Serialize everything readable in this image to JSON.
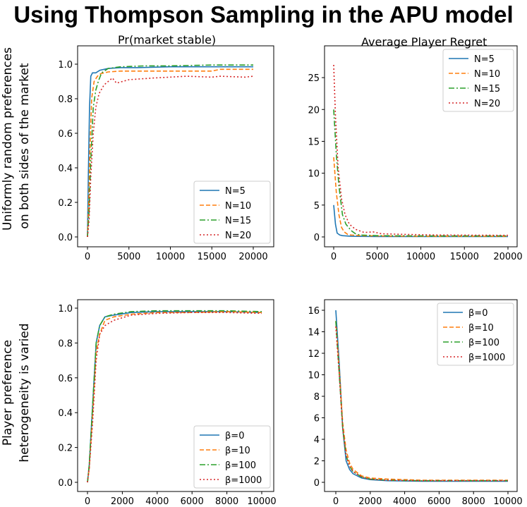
{
  "title": "Using Thompson Sampling in the APU model",
  "column_titles": [
    "Pr(market stable)",
    "Average Player Regret"
  ],
  "row_labels": [
    [
      "Uniformly random preferences",
      "on both sides of the market"
    ],
    [
      "Player preference",
      "heterogeneity is varied"
    ]
  ],
  "colors": [
    "#1f77b4",
    "#ff7f0e",
    "#2ca02c",
    "#d62728"
  ],
  "chart_data": [
    {
      "type": "line",
      "title": "Pr(market stable)",
      "xlim": [
        0,
        20000
      ],
      "ylim": [
        0,
        1
      ],
      "xticks": [
        0,
        5000,
        10000,
        15000,
        20000
      ],
      "yticks": [
        0.0,
        0.2,
        0.4,
        0.6,
        0.8,
        1.0
      ],
      "xtick_labels": [
        "0",
        "5000",
        "10000",
        "15000",
        "20000"
      ],
      "ytick_labels": [
        "0.0",
        "0.2",
        "0.4",
        "0.6",
        "0.8",
        "1.0"
      ],
      "legend": "lower-right",
      "series": [
        {
          "name": "N=5",
          "x": [
            0,
            100,
            250,
            400,
            600,
            1000,
            1500,
            2500,
            4000,
            6000,
            10000,
            15000,
            20000
          ],
          "y": [
            0,
            0.35,
            0.75,
            0.93,
            0.95,
            0.95,
            0.965,
            0.975,
            0.98,
            0.98,
            0.985,
            0.985,
            0.985
          ]
        },
        {
          "name": "N=10",
          "x": [
            0,
            150,
            300,
            500,
            800,
            1200,
            1600,
            2500,
            4000,
            7000,
            10000,
            15000,
            16000,
            20000
          ],
          "y": [
            0,
            0.2,
            0.5,
            0.8,
            0.9,
            0.93,
            0.945,
            0.955,
            0.96,
            0.96,
            0.96,
            0.96,
            0.97,
            0.97
          ]
        },
        {
          "name": "N=15",
          "x": [
            0,
            200,
            400,
            700,
            1000,
            1300,
            1700,
            2500,
            4000,
            7000,
            10000,
            15000,
            20000
          ],
          "y": [
            0,
            0.15,
            0.45,
            0.75,
            0.85,
            0.9,
            0.95,
            0.975,
            0.985,
            0.99,
            0.99,
            0.995,
            0.995
          ]
        },
        {
          "name": "N=20",
          "x": [
            0,
            200,
            400,
            700,
            1000,
            1400,
            2000,
            3000,
            3500,
            5000,
            8000,
            12000,
            15000,
            16000,
            19000,
            20000
          ],
          "y": [
            0,
            0.1,
            0.35,
            0.6,
            0.75,
            0.83,
            0.88,
            0.92,
            0.89,
            0.91,
            0.92,
            0.93,
            0.925,
            0.93,
            0.925,
            0.93
          ]
        }
      ]
    },
    {
      "type": "line",
      "title": "Average Player Regret",
      "xlim": [
        0,
        20000
      ],
      "ylim": [
        0,
        27
      ],
      "xticks": [
        0,
        5000,
        10000,
        15000,
        20000
      ],
      "yticks": [
        0,
        5,
        10,
        15,
        20,
        25
      ],
      "xtick_labels": [
        "0",
        "5000",
        "10000",
        "15000",
        "20000"
      ],
      "ytick_labels": [
        "0",
        "5",
        "10",
        "15",
        "20",
        "25"
      ],
      "legend": "upper-right",
      "series": [
        {
          "name": "N=5",
          "x": [
            0,
            200,
            400,
            700,
            1000,
            2000,
            5000,
            10000,
            20000
          ],
          "y": [
            5.0,
            2.0,
            0.6,
            0.3,
            0.2,
            0.1,
            0.05,
            0.05,
            0.05
          ]
        },
        {
          "name": "N=10",
          "x": [
            0,
            300,
            600,
            900,
            1200,
            1600,
            2000,
            3000,
            5000,
            10000,
            20000
          ],
          "y": [
            12.5,
            7.0,
            3.5,
            1.5,
            0.8,
            0.4,
            0.3,
            0.2,
            0.15,
            0.1,
            0.1
          ]
        },
        {
          "name": "N=15",
          "x": [
            0,
            300,
            600,
            1000,
            1400,
            2000,
            2500,
            3000,
            5000,
            10000,
            20000
          ],
          "y": [
            20.0,
            13.0,
            8.0,
            3.5,
            2.0,
            1.0,
            0.5,
            0.3,
            0.2,
            0.15,
            0.15
          ]
        },
        {
          "name": "N=20",
          "x": [
            0,
            200,
            500,
            900,
            1300,
            1800,
            2500,
            3500,
            4500,
            5500,
            8000,
            12000,
            20000
          ],
          "y": [
            27.0,
            19.0,
            11.0,
            6.0,
            3.5,
            2.0,
            1.2,
            0.7,
            0.8,
            0.5,
            0.4,
            0.3,
            0.25
          ]
        }
      ]
    },
    {
      "type": "line",
      "title": "",
      "xlim": [
        0,
        10000
      ],
      "ylim": [
        0,
        1
      ],
      "xticks": [
        0,
        2000,
        4000,
        6000,
        8000,
        10000
      ],
      "yticks": [
        0.0,
        0.2,
        0.4,
        0.6,
        0.8,
        1.0
      ],
      "xtick_labels": [
        "0",
        "2000",
        "4000",
        "6000",
        "8000",
        "10000"
      ],
      "ytick_labels": [
        "0.0",
        "0.2",
        "0.4",
        "0.6",
        "0.8",
        "1.0"
      ],
      "legend": "lower-right",
      "series": [
        {
          "name": "β=0",
          "x": [
            0,
            100,
            300,
            500,
            700,
            1000,
            1500,
            2500,
            4000,
            6000,
            8000,
            10000
          ],
          "y": [
            0,
            0.1,
            0.45,
            0.8,
            0.9,
            0.95,
            0.96,
            0.975,
            0.98,
            0.98,
            0.98,
            0.975
          ]
        },
        {
          "name": "β=10",
          "x": [
            0,
            100,
            300,
            500,
            700,
            1000,
            1500,
            2500,
            4000,
            6000,
            8000,
            10000
          ],
          "y": [
            0,
            0.08,
            0.4,
            0.75,
            0.85,
            0.93,
            0.95,
            0.965,
            0.975,
            0.975,
            0.98,
            0.975
          ]
        },
        {
          "name": "β=100",
          "x": [
            0,
            100,
            300,
            500,
            700,
            1000,
            1500,
            2500,
            4000,
            6000,
            8000,
            10000
          ],
          "y": [
            0,
            0.1,
            0.45,
            0.8,
            0.9,
            0.95,
            0.965,
            0.98,
            0.985,
            0.985,
            0.985,
            0.98
          ]
        },
        {
          "name": "β=1000",
          "x": [
            0,
            100,
            300,
            500,
            700,
            1000,
            1500,
            2500,
            4000,
            6000,
            8000,
            10000
          ],
          "y": [
            0,
            0.08,
            0.35,
            0.7,
            0.85,
            0.9,
            0.93,
            0.96,
            0.97,
            0.975,
            0.975,
            0.97
          ]
        }
      ]
    },
    {
      "type": "line",
      "title": "",
      "xlim": [
        0,
        10000
      ],
      "ylim": [
        0,
        16
      ],
      "xticks": [
        0,
        2000,
        4000,
        6000,
        8000,
        10000
      ],
      "yticks": [
        0,
        2,
        4,
        6,
        8,
        10,
        12,
        14,
        16
      ],
      "xtick_labels": [
        "0",
        "2000",
        "4000",
        "6000",
        "8000",
        "10000"
      ],
      "ytick_labels": [
        "0",
        "2",
        "4",
        "6",
        "8",
        "10",
        "12",
        "14",
        "16"
      ],
      "legend": "upper-right",
      "series": [
        {
          "name": "β=0",
          "x": [
            0,
            200,
            400,
            600,
            800,
            1000,
            1500,
            2000,
            3000,
            5000,
            8000,
            10000
          ],
          "y": [
            16.0,
            11.0,
            5.0,
            2.0,
            1.2,
            0.8,
            0.4,
            0.25,
            0.15,
            0.1,
            0.1,
            0.1
          ]
        },
        {
          "name": "β=10",
          "x": [
            0,
            200,
            400,
            600,
            800,
            1000,
            1500,
            2000,
            3000,
            5000,
            8000,
            10000
          ],
          "y": [
            15.0,
            10.5,
            5.5,
            3.0,
            1.8,
            1.2,
            0.6,
            0.4,
            0.3,
            0.2,
            0.2,
            0.2
          ]
        },
        {
          "name": "β=100",
          "x": [
            0,
            200,
            400,
            600,
            800,
            1000,
            1500,
            2000,
            3000,
            5000,
            8000,
            10000
          ],
          "y": [
            15.0,
            10.0,
            5.0,
            2.5,
            1.5,
            1.0,
            0.5,
            0.3,
            0.2,
            0.15,
            0.15,
            0.15
          ]
        },
        {
          "name": "β=1000",
          "x": [
            0,
            200,
            400,
            600,
            800,
            1000,
            1500,
            2000,
            3000,
            5000,
            8000,
            10000
          ],
          "y": [
            14.5,
            10.0,
            5.0,
            2.5,
            1.5,
            1.0,
            0.5,
            0.3,
            0.2,
            0.15,
            0.15,
            0.15
          ]
        }
      ]
    }
  ]
}
